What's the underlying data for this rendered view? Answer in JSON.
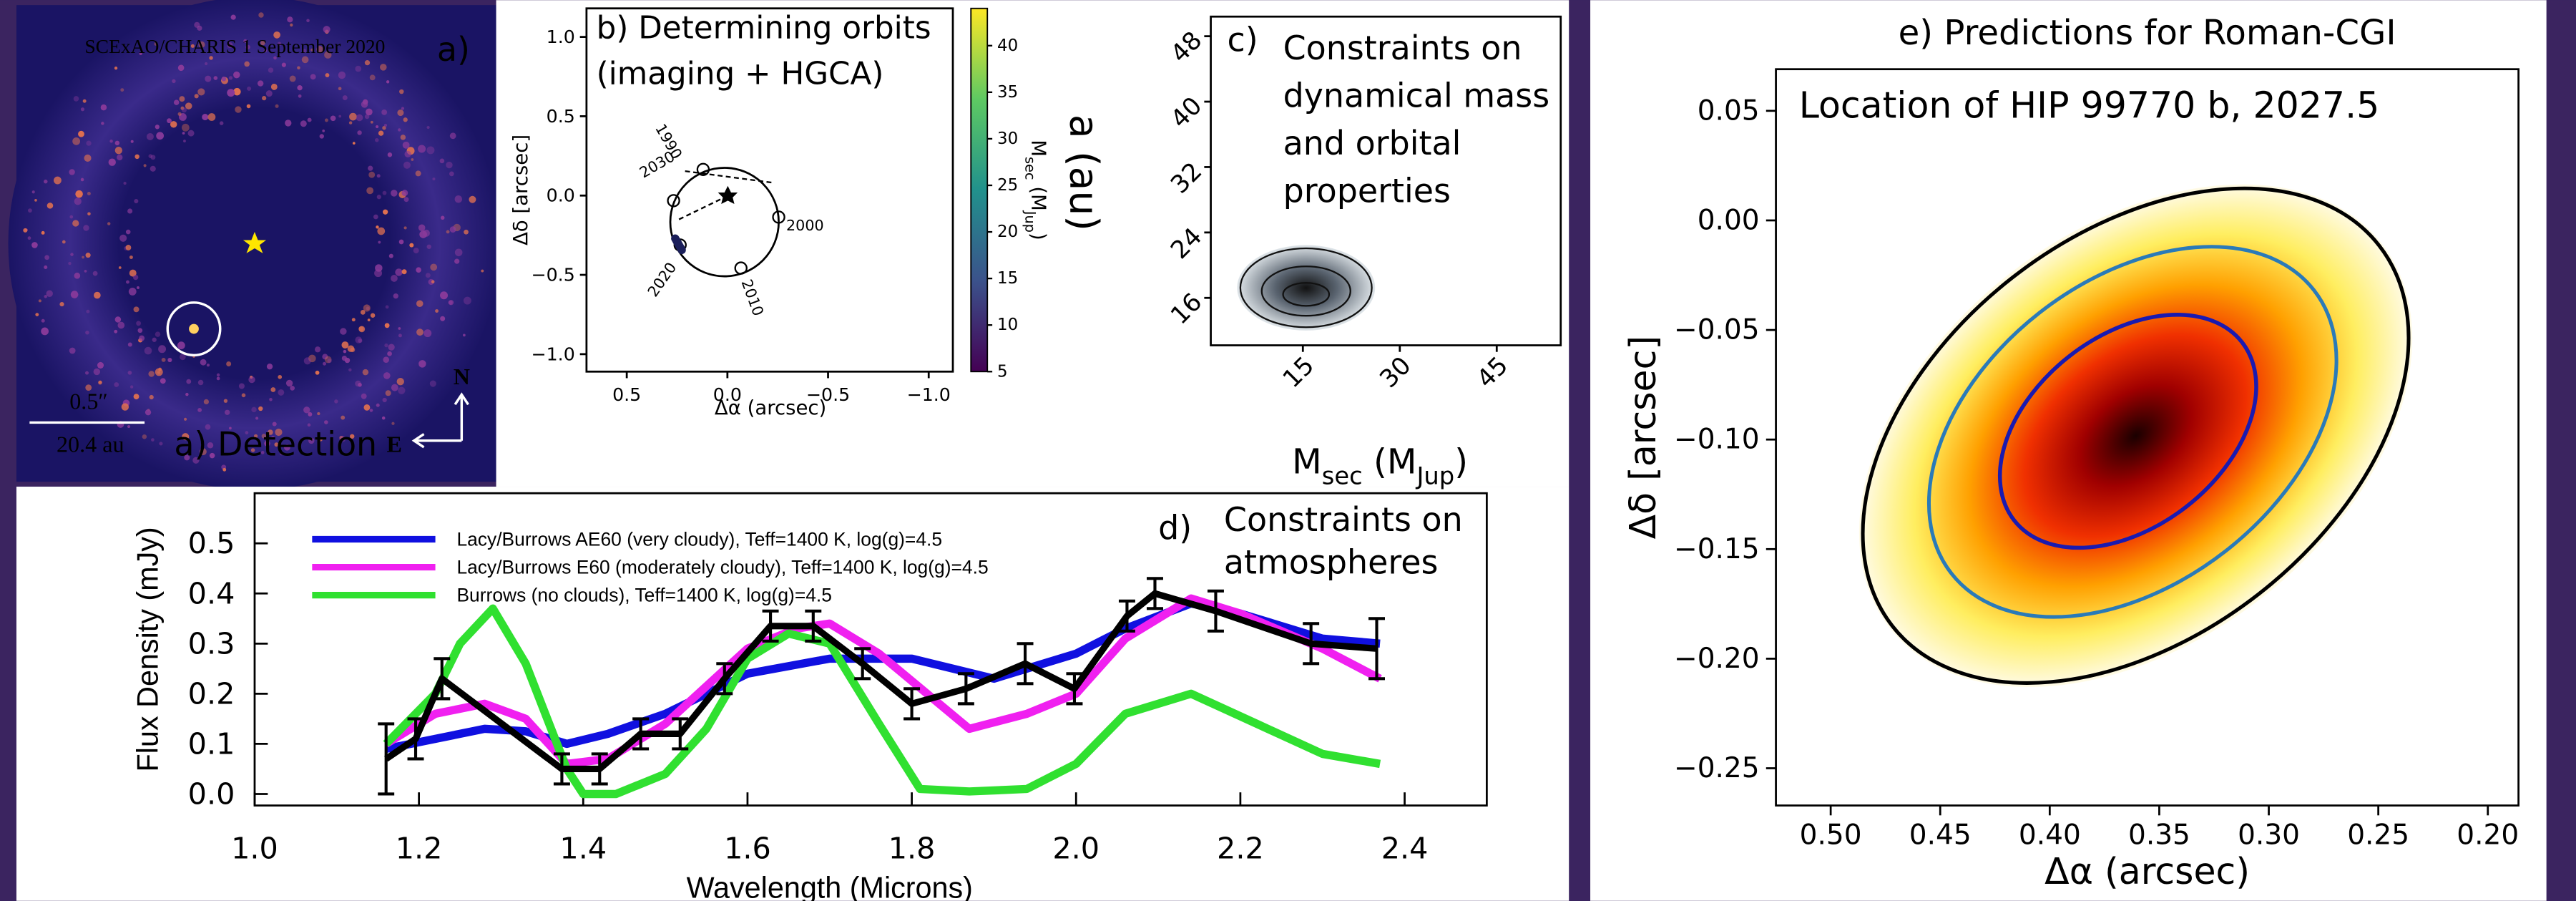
{
  "chart_data": [
    {
      "type": "image",
      "title": "SCExAO/CHARIS 1 September 2020",
      "panel_label": "a)",
      "scale_angle": "0.5″",
      "scale_length": "20.4 au",
      "caption": "a) Detection",
      "north": "N",
      "east": "E"
    },
    {
      "type": "orbit",
      "title": [
        "b) Determining orbits",
        "(imaging + HGCA)"
      ],
      "xlabel": "Δα (arcsec)",
      "ylabel": "Δδ [arcsec]",
      "xlim": [
        0.7,
        -1.12
      ],
      "ylim": [
        -1.11,
        1.18
      ],
      "xticks": [
        0.5,
        {
          "value": 0,
          "label": "0.0"
        },
        {
          "value": -0.5,
          "label": "−0.5"
        },
        {
          "value": -1,
          "label": "−1.0"
        }
      ],
      "yticks": [
        {
          "value": -1,
          "label": "−1.0"
        },
        {
          "value": -0.5,
          "label": "−0.5"
        },
        {
          "value": 0,
          "label": "0.0"
        },
        0.5,
        {
          "value": 1,
          "label": "1.0"
        }
      ],
      "epochs": [
        "1990",
        "2000",
        "2010",
        "2020",
        "2030"
      ],
      "colorbar": {
        "label": [
          "M",
          "sec",
          " (M",
          "Jup",
          ")"
        ],
        "lim": [
          5,
          44
        ],
        "ticks": [
          5,
          10,
          15,
          20,
          25,
          30,
          35,
          40
        ]
      }
    },
    {
      "type": "contour",
      "panel_label": "c)",
      "annotation": [
        "Constraints on",
        "dynamical mass",
        "and orbital",
        "properties"
      ],
      "xlabel": [
        "M",
        "sec",
        " (M",
        "Jup",
        ")"
      ],
      "ylabel": "a (au)",
      "xlim": [
        0.75,
        54.9
      ],
      "ylim": [
        10.2,
        50.4
      ],
      "xticks": [
        15,
        30,
        45
      ],
      "yticks": [
        16,
        24,
        32,
        40,
        48
      ]
    },
    {
      "type": "line",
      "panel_label": "d)",
      "annotation": [
        "Constraints on",
        "atmospheres"
      ],
      "xlabel": "Wavelength (Microns)",
      "ylabel": "Flux Density (mJy)",
      "xlim": [
        1.0,
        2.5
      ],
      "ylim": [
        -0.023,
        0.6
      ],
      "xticks": [
        {
          "value": 1,
          "label": "1.0"
        },
        1.2,
        1.4,
        1.6,
        1.8,
        {
          "value": 2,
          "label": "2.0"
        },
        2.2,
        2.4
      ],
      "yticks": [
        {
          "value": 0,
          "label": "0.0"
        },
        0.1,
        0.2,
        0.3,
        0.4,
        0.5
      ],
      "series": [
        {
          "name": "Lacy/Burrows AE60 (very cloudy), Teff=1400 K, log(g)=4.5",
          "color": "#1010e0",
          "x": [
            1.16,
            1.28,
            1.33,
            1.38,
            1.43,
            1.5,
            1.6,
            1.7,
            1.8,
            1.9,
            2.0,
            2.06,
            2.14,
            2.2,
            2.3,
            2.37
          ],
          "values": [
            0.09,
            0.13,
            0.125,
            0.1,
            0.12,
            0.16,
            0.24,
            0.27,
            0.27,
            0.23,
            0.28,
            0.33,
            0.38,
            0.36,
            0.31,
            0.3
          ]
        },
        {
          "name": "Lacy/Burrows E60 (moderately cloudy), Teff=1400 K, log(g)=4.5",
          "color": "#f020f0",
          "x": [
            1.16,
            1.22,
            1.28,
            1.33,
            1.38,
            1.43,
            1.5,
            1.6,
            1.66,
            1.7,
            1.76,
            1.87,
            1.94,
            2.0,
            2.06,
            2.14,
            2.2,
            2.3,
            2.37
          ],
          "values": [
            0.1,
            0.16,
            0.18,
            0.15,
            0.06,
            0.07,
            0.14,
            0.29,
            0.33,
            0.34,
            0.28,
            0.13,
            0.16,
            0.2,
            0.31,
            0.39,
            0.36,
            0.29,
            0.23
          ]
        },
        {
          "name": "Burrows (no clouds), Teff=1400 K, log(g)=4.5",
          "color": "#30e030",
          "x": [
            1.16,
            1.22,
            1.25,
            1.29,
            1.33,
            1.38,
            1.4,
            1.44,
            1.5,
            1.55,
            1.6,
            1.65,
            1.7,
            1.76,
            1.81,
            1.87,
            1.94,
            2.0,
            2.06,
            2.14,
            2.22,
            2.3,
            2.37
          ],
          "values": [
            0.1,
            0.2,
            0.3,
            0.37,
            0.26,
            0.05,
            0,
            0,
            0.04,
            0.13,
            0.27,
            0.32,
            0.3,
            0.14,
            0.01,
            0.005,
            0.01,
            0.06,
            0.16,
            0.2,
            0.14,
            0.08,
            0.06
          ]
        },
        {
          "color": "#000000",
          "x": [
            1.16,
            1.196,
            1.228,
            1.374,
            1.42,
            1.47,
            1.518,
            1.572,
            1.628,
            1.68,
            1.74,
            1.8,
            1.866,
            1.938,
            1.998,
            2.062,
            2.096,
            2.17,
            2.286,
            2.366
          ],
          "values": [
            0.07,
            0.11,
            0.23,
            0.05,
            0.05,
            0.12,
            0.12,
            0.23,
            0.335,
            0.335,
            0.26,
            0.18,
            0.21,
            0.26,
            0.21,
            0.355,
            0.4,
            0.365,
            0.3,
            0.29
          ],
          "errors": [
            0.07,
            0.04,
            0.04,
            0.03,
            0.03,
            0.03,
            0.03,
            0.03,
            0.03,
            0.03,
            0.03,
            0.03,
            0.03,
            0.04,
            0.03,
            0.03,
            0.03,
            0.04,
            0.04,
            0.06
          ]
        }
      ]
    },
    {
      "type": "contour",
      "title": "e) Predictions for Roman-CGI",
      "annotation": "Location of HIP 99770 b, 2027.5",
      "xlabel": "Δα (arcsec)",
      "ylabel": "Δδ [arcsec]",
      "xlim": [
        0.525,
        0.186
      ],
      "ylim": [
        -0.267,
        0.069
      ],
      "xticks": [
        {
          "value": 0.5,
          "label": "0.50"
        },
        0.45,
        {
          "value": 0.4,
          "label": "0.40"
        },
        0.35,
        {
          "value": 0.3,
          "label": "0.30"
        },
        0.25,
        {
          "value": 0.2,
          "label": "0.20"
        }
      ],
      "yticks": [
        0.05,
        {
          "value": 0,
          "label": "0.00"
        },
        {
          "value": -0.05,
          "label": "−0.05"
        },
        {
          "value": -0.1,
          "label": "−0.10"
        },
        {
          "value": -0.15,
          "label": "−0.15"
        },
        {
          "value": -0.2,
          "label": "−0.20"
        },
        {
          "value": -0.25,
          "label": "−0.25"
        }
      ]
    }
  ]
}
